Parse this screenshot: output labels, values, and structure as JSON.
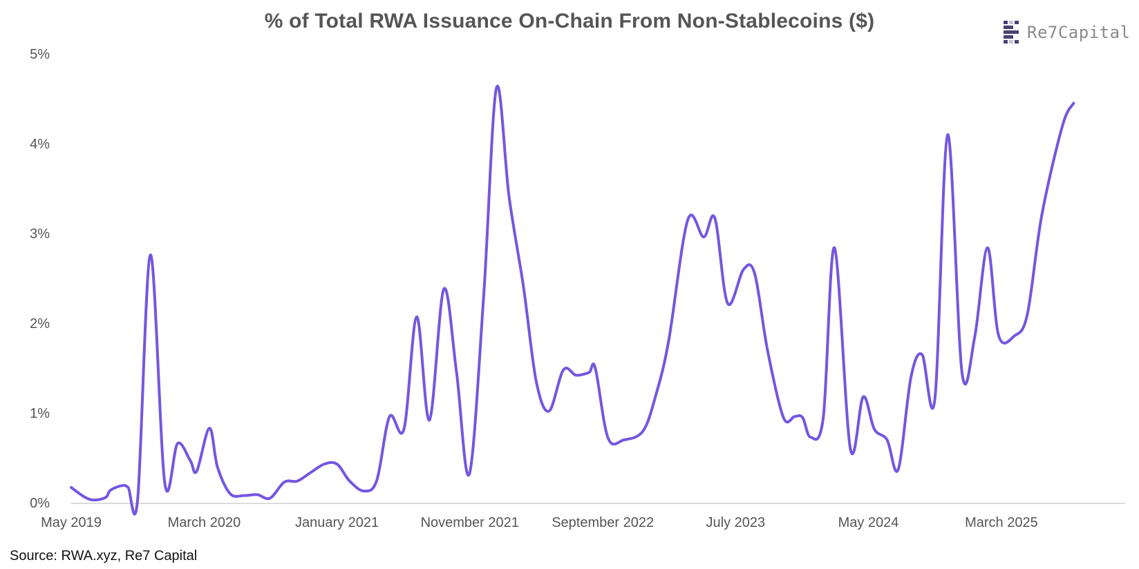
{
  "header": {
    "logo_text": "Re7Capital"
  },
  "colors": {
    "line": "#7456E0",
    "axis": "#cfcfcf",
    "text": "#555555"
  },
  "source_text": "Source: RWA.xyz, Re7 Capital",
  "chart_data": {
    "type": "line",
    "title": "% of Total RWA Issuance On-Chain From Non-Stablecoins ($)",
    "xlabel": "",
    "ylabel": "",
    "ylim": [
      0,
      5
    ],
    "y_ticks": [
      0,
      1,
      2,
      3,
      4,
      5
    ],
    "y_tick_labels": [
      "0%",
      "1%",
      "2%",
      "3%",
      "4%",
      "5%"
    ],
    "x_tick_labels": [
      "May 2019",
      "March 2020",
      "January 2021",
      "November 2021",
      "September 2022",
      "July 2023",
      "May 2024",
      "March 2025"
    ],
    "x_tick_positions": [
      2019.333,
      2020.167,
      2021.0,
      2021.833,
      2022.667,
      2023.5,
      2024.333,
      2025.167
    ],
    "x_range": [
      2019.333,
      2025.9
    ],
    "grid": false,
    "legend": "none",
    "series": [
      {
        "points": [
          [
            2019.333,
            0.17
          ],
          [
            2019.42,
            0.06
          ],
          [
            2019.48,
            0.03
          ],
          [
            2019.55,
            0.06
          ],
          [
            2019.58,
            0.14
          ],
          [
            2019.65,
            0.19
          ],
          [
            2019.69,
            0.17
          ],
          [
            2019.75,
            0.04
          ],
          [
            2019.83,
            2.76
          ],
          [
            2019.92,
            0.22
          ],
          [
            2020.0,
            0.66
          ],
          [
            2020.08,
            0.47
          ],
          [
            2020.12,
            0.35
          ],
          [
            2020.2,
            0.83
          ],
          [
            2020.25,
            0.4
          ],
          [
            2020.33,
            0.1
          ],
          [
            2020.42,
            0.08
          ],
          [
            2020.5,
            0.09
          ],
          [
            2020.58,
            0.05
          ],
          [
            2020.67,
            0.23
          ],
          [
            2020.75,
            0.24
          ],
          [
            2020.83,
            0.33
          ],
          [
            2020.92,
            0.43
          ],
          [
            2021.0,
            0.43
          ],
          [
            2021.08,
            0.24
          ],
          [
            2021.17,
            0.13
          ],
          [
            2021.25,
            0.25
          ],
          [
            2021.33,
            0.96
          ],
          [
            2021.42,
            0.82
          ],
          [
            2021.5,
            2.07
          ],
          [
            2021.58,
            0.92
          ],
          [
            2021.67,
            2.38
          ],
          [
            2021.75,
            1.45
          ],
          [
            2021.83,
            0.32
          ],
          [
            2021.92,
            2.3
          ],
          [
            2022.0,
            4.62
          ],
          [
            2022.08,
            3.4
          ],
          [
            2022.17,
            2.4
          ],
          [
            2022.25,
            1.35
          ],
          [
            2022.33,
            1.02
          ],
          [
            2022.42,
            1.48
          ],
          [
            2022.5,
            1.42
          ],
          [
            2022.58,
            1.45
          ],
          [
            2022.62,
            1.5
          ],
          [
            2022.7,
            0.72
          ],
          [
            2022.8,
            0.7
          ],
          [
            2022.92,
            0.8
          ],
          [
            2023.0,
            1.2
          ],
          [
            2023.08,
            1.8
          ],
          [
            2023.2,
            3.15
          ],
          [
            2023.3,
            2.96
          ],
          [
            2023.37,
            3.17
          ],
          [
            2023.45,
            2.22
          ],
          [
            2023.55,
            2.6
          ],
          [
            2023.62,
            2.55
          ],
          [
            2023.7,
            1.7
          ],
          [
            2023.8,
            0.95
          ],
          [
            2023.87,
            0.96
          ],
          [
            2023.92,
            0.95
          ],
          [
            2023.97,
            0.73
          ],
          [
            2024.05,
            0.95
          ],
          [
            2024.12,
            2.84
          ],
          [
            2024.22,
            0.6
          ],
          [
            2024.3,
            1.18
          ],
          [
            2024.37,
            0.82
          ],
          [
            2024.45,
            0.7
          ],
          [
            2024.52,
            0.37
          ],
          [
            2024.6,
            1.4
          ],
          [
            2024.67,
            1.65
          ],
          [
            2024.75,
            1.16
          ],
          [
            2024.83,
            4.1
          ],
          [
            2024.92,
            1.45
          ],
          [
            2025.0,
            1.85
          ],
          [
            2025.08,
            2.84
          ],
          [
            2025.15,
            1.86
          ],
          [
            2025.25,
            1.86
          ],
          [
            2025.33,
            2.1
          ],
          [
            2025.42,
            3.2
          ],
          [
            2025.55,
            4.2
          ],
          [
            2025.62,
            4.45
          ]
        ]
      }
    ]
  }
}
